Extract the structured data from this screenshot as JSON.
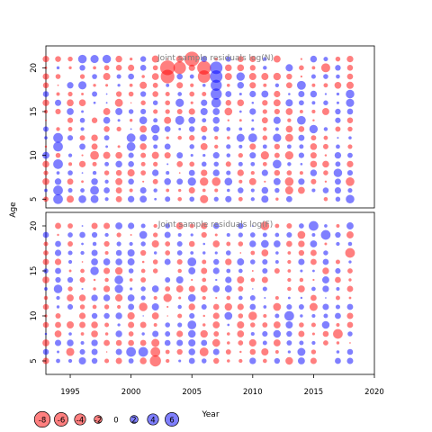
{
  "chart_data": {
    "type": "scatter",
    "ylabel": "Age",
    "xlabel": "Year",
    "xlim": [
      1993,
      2020
    ],
    "xticks": [
      1995,
      2000,
      2005,
      2010,
      2015,
      2020
    ],
    "year_range": [
      1993,
      2018
    ],
    "age_range": [
      5,
      21
    ],
    "colors": {
      "negative": "#ff0000",
      "positive": "#0000ff"
    },
    "legend": {
      "labels": [
        "-8",
        "-6",
        "-4",
        "-2",
        "0",
        "2",
        "4",
        "6"
      ],
      "values": [
        -8,
        -6,
        -4,
        -2,
        0,
        2,
        4,
        6
      ]
    },
    "panels": [
      {
        "title": "Joint sample residuals log(N)",
        "ylim": [
          4,
          22.5
        ],
        "yticks": [
          5,
          10,
          15,
          20
        ],
        "seed": 7,
        "big_points": [
          {
            "year": 2003,
            "age": 20,
            "value": -7
          },
          {
            "year": 2003,
            "age": 19,
            "value": -6
          },
          {
            "year": 2004,
            "age": 20,
            "value": -5
          },
          {
            "year": 2005,
            "age": 21,
            "value": -7
          },
          {
            "year": 2006,
            "age": 20,
            "value": -6
          },
          {
            "year": 2006,
            "age": 19,
            "value": -5
          },
          {
            "year": 2007,
            "age": 20,
            "value": 5
          },
          {
            "year": 2007,
            "age": 19,
            "value": 5
          },
          {
            "year": 2007,
            "age": 18,
            "value": 4
          },
          {
            "year": 2007,
            "age": 17,
            "value": 4
          },
          {
            "year": 2007,
            "age": 16,
            "value": 3
          },
          {
            "year": 1994,
            "age": 5,
            "value": 3
          },
          {
            "year": 1994,
            "age": 6,
            "value": 3
          },
          {
            "year": 1994,
            "age": 9,
            "value": 3
          },
          {
            "year": 1994,
            "age": 11,
            "value": 3
          },
          {
            "year": 1994,
            "age": 12,
            "value": 3
          }
        ]
      },
      {
        "title": "Joint sample residuals log(F)",
        "ylim": [
          3.5,
          21.5
        ],
        "yticks": [
          5,
          10,
          15,
          20
        ],
        "seed": 19,
        "big_points": [
          {
            "year": 2002,
            "age": 5,
            "value": -4
          },
          {
            "year": 2002,
            "age": 6,
            "value": -3
          },
          {
            "year": 2001,
            "age": 6,
            "value": 3
          },
          {
            "year": 2000,
            "age": 6,
            "value": 3
          },
          {
            "year": 2013,
            "age": 10,
            "value": 3
          },
          {
            "year": 2017,
            "age": 8,
            "value": -3
          },
          {
            "year": 2018,
            "age": 17,
            "value": -3
          },
          {
            "year": 2015,
            "age": 20,
            "value": 3
          },
          {
            "year": 2016,
            "age": 19,
            "value": 3
          }
        ]
      }
    ]
  }
}
